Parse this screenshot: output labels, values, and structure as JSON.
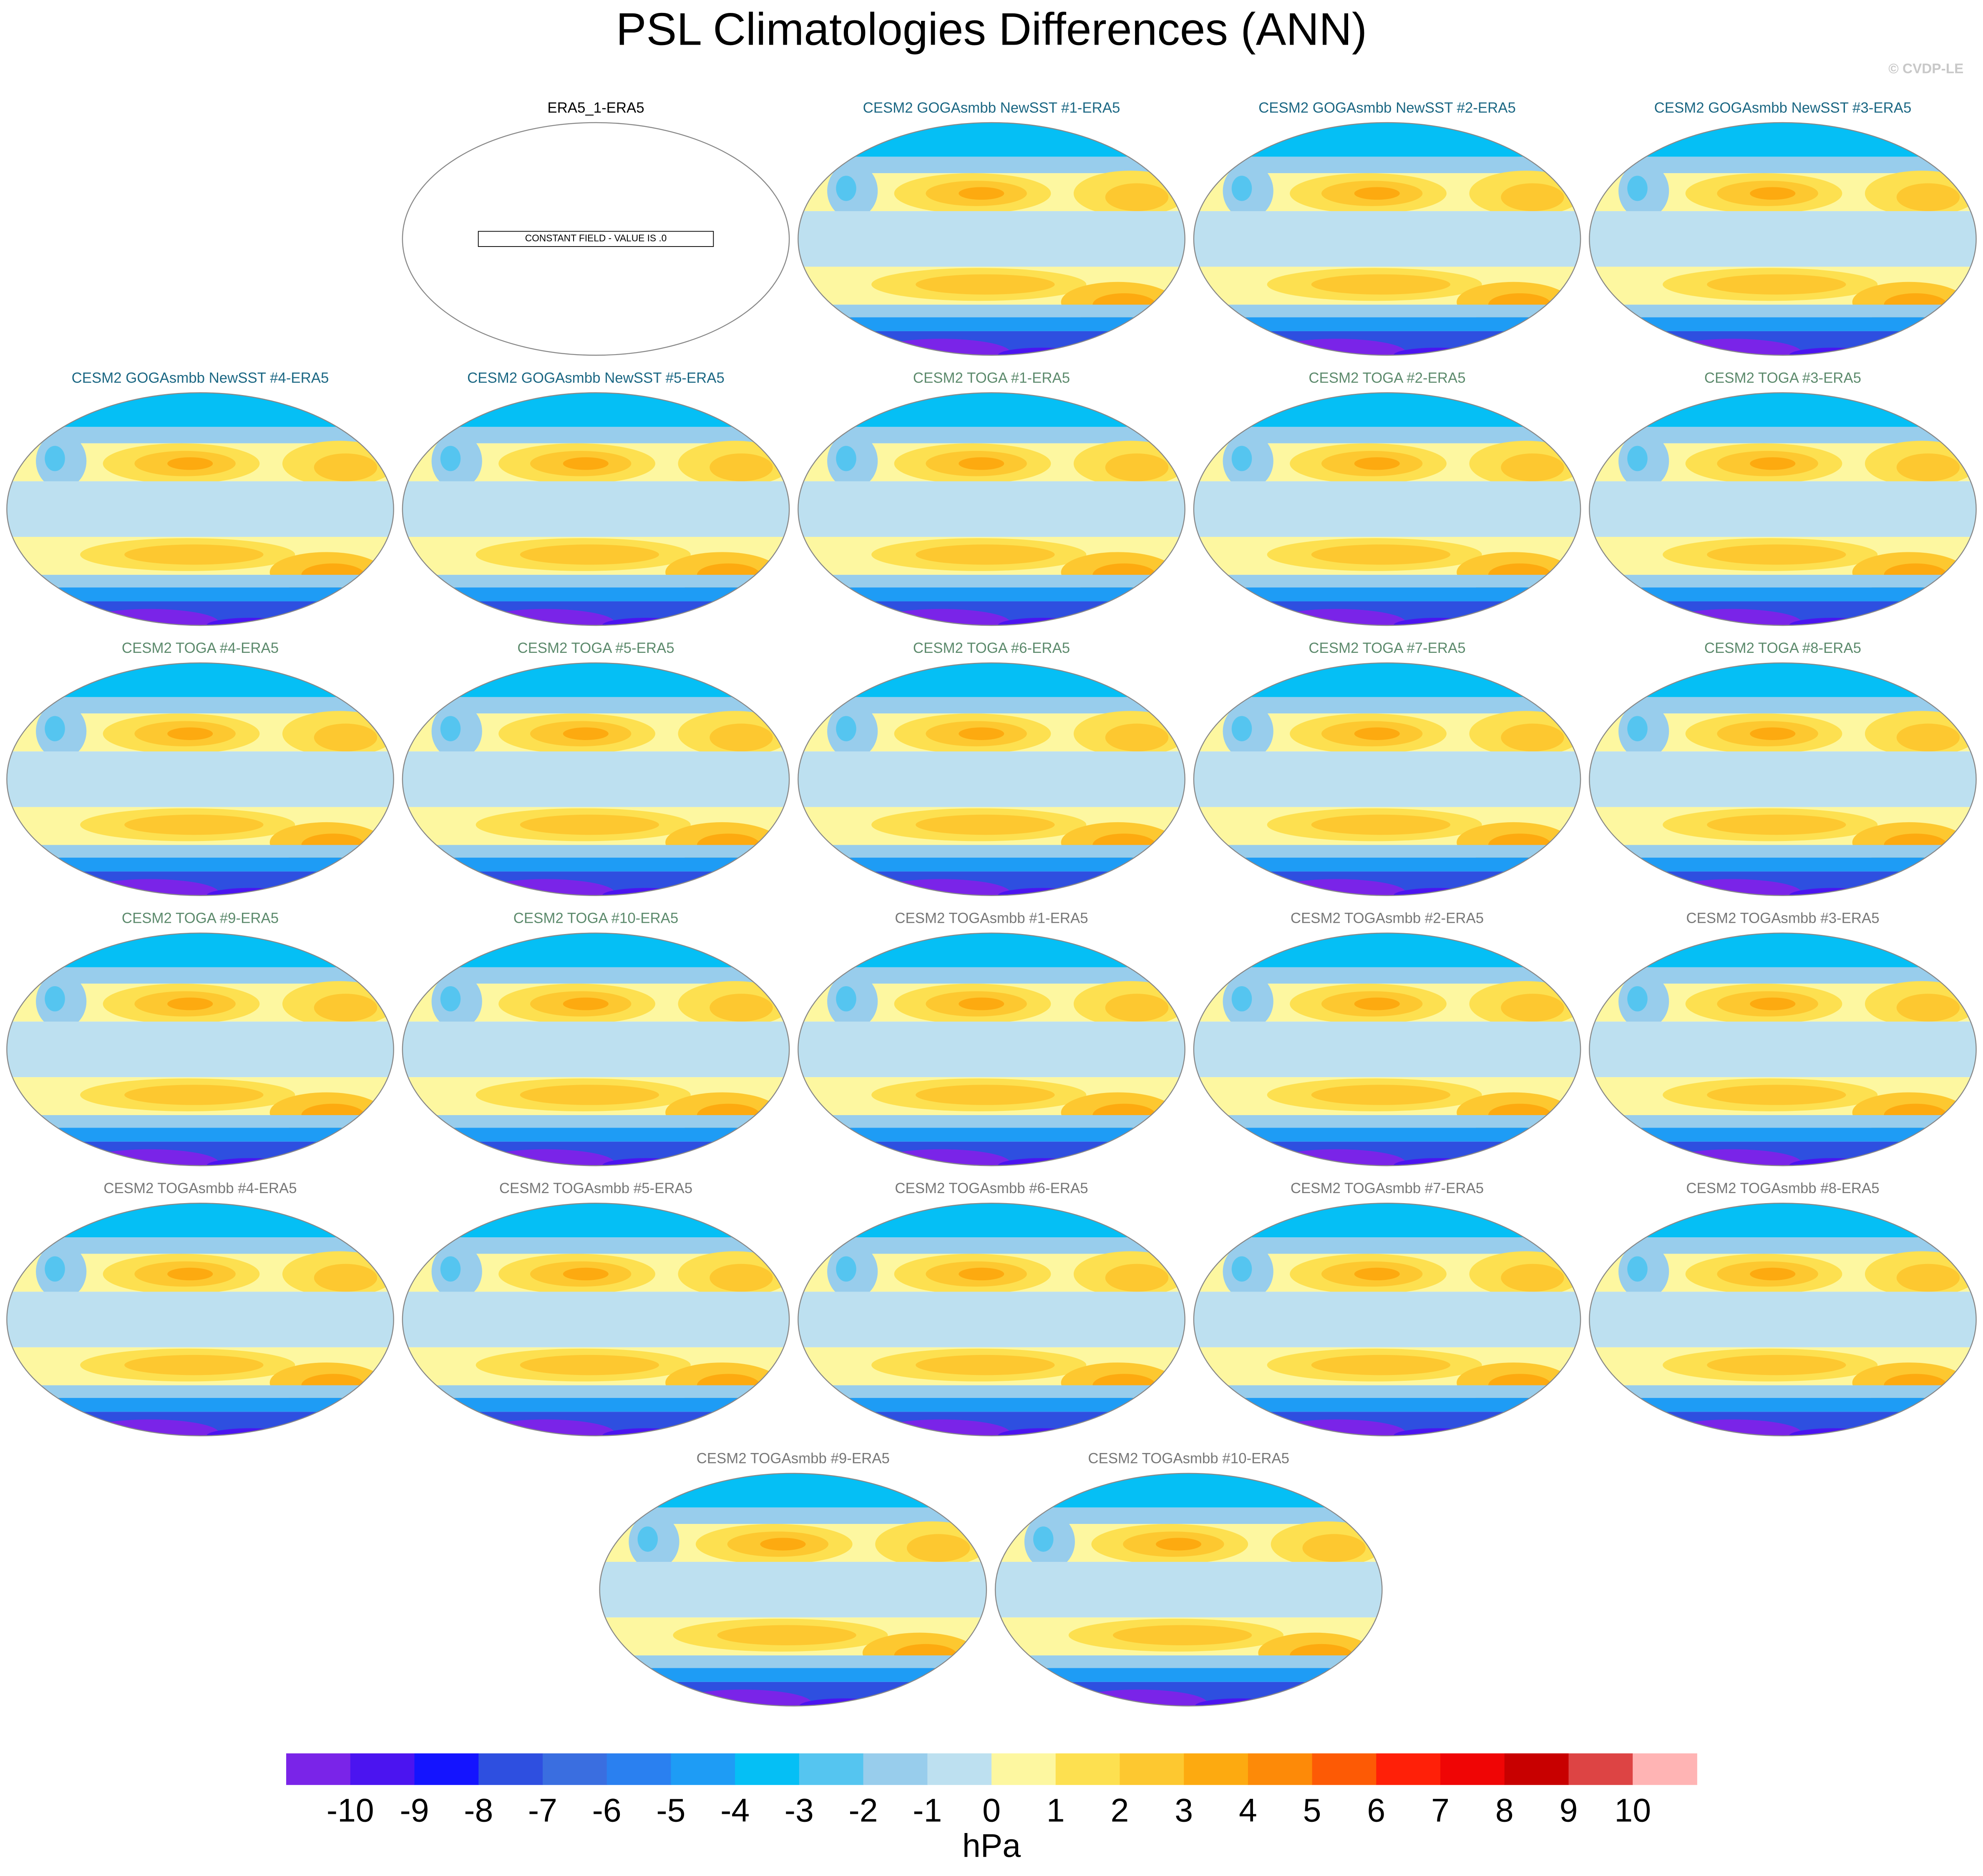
{
  "title": "PSL Climatologies Differences (ANN)",
  "credit": "© CVDP-LE",
  "panels": [
    {
      "title": "ERA5_1-ERA5",
      "color": "#000000",
      "note": "CONSTANT FIELD - VALUE IS .0"
    },
    {
      "title": "CESM2 GOGAsmbb NewSST #1-ERA5",
      "color": "#1b6783"
    },
    {
      "title": "CESM2 GOGAsmbb NewSST #2-ERA5",
      "color": "#1b6783"
    },
    {
      "title": "CESM2 GOGAsmbb NewSST #3-ERA5",
      "color": "#1b6783"
    },
    {
      "title": "CESM2 GOGAsmbb NewSST #4-ERA5",
      "color": "#1b6783"
    },
    {
      "title": "CESM2 GOGAsmbb NewSST #5-ERA5",
      "color": "#1b6783"
    },
    {
      "title": "CESM2 TOGA #1-ERA5",
      "color": "#5c8a6c"
    },
    {
      "title": "CESM2 TOGA #2-ERA5",
      "color": "#5c8a6c"
    },
    {
      "title": "CESM2 TOGA #3-ERA5",
      "color": "#5c8a6c"
    },
    {
      "title": "CESM2 TOGA #4-ERA5",
      "color": "#5c8a6c"
    },
    {
      "title": "CESM2 TOGA #5-ERA5",
      "color": "#5c8a6c"
    },
    {
      "title": "CESM2 TOGA #6-ERA5",
      "color": "#5c8a6c"
    },
    {
      "title": "CESM2 TOGA #7-ERA5",
      "color": "#5c8a6c"
    },
    {
      "title": "CESM2 TOGA #8-ERA5",
      "color": "#5c8a6c"
    },
    {
      "title": "CESM2 TOGA #9-ERA5",
      "color": "#5c8a6c"
    },
    {
      "title": "CESM2 TOGA #10-ERA5",
      "color": "#5c8a6c"
    },
    {
      "title": "CESM2 TOGAsmbb #1-ERA5",
      "color": "#777777"
    },
    {
      "title": "CESM2 TOGAsmbb #2-ERA5",
      "color": "#777777"
    },
    {
      "title": "CESM2 TOGAsmbb #3-ERA5",
      "color": "#777777"
    },
    {
      "title": "CESM2 TOGAsmbb #4-ERA5",
      "color": "#777777"
    },
    {
      "title": "CESM2 TOGAsmbb #5-ERA5",
      "color": "#777777"
    },
    {
      "title": "CESM2 TOGAsmbb #6-ERA5",
      "color": "#777777"
    },
    {
      "title": "CESM2 TOGAsmbb #7-ERA5",
      "color": "#777777"
    },
    {
      "title": "CESM2 TOGAsmbb #8-ERA5",
      "color": "#777777"
    },
    {
      "title": "CESM2 TOGAsmbb #9-ERA5",
      "color": "#777777"
    },
    {
      "title": "CESM2 TOGAsmbb #10-ERA5",
      "color": "#777777"
    }
  ],
  "colorbar": {
    "label": "hPa",
    "ticks": [
      -10,
      -9,
      -8,
      -7,
      -6,
      -5,
      -4,
      -3,
      -2,
      -1,
      0,
      1,
      2,
      3,
      4,
      5,
      6,
      7,
      8,
      9,
      10
    ],
    "colors": [
      "#7a24e8",
      "#4b14f0",
      "#1414ff",
      "#2e4fe0",
      "#3a6ee0",
      "#2a80f0",
      "#1e9cf5",
      "#05bff5",
      "#55c5f0",
      "#98cdec",
      "#bde0f0",
      "#fdf7a0",
      "#fde050",
      "#fdc830",
      "#fdaa10",
      "#fd8a08",
      "#fd5a05",
      "#ff2008",
      "#f00505",
      "#c80000",
      "#dd4444",
      "#ffb4b4"
    ]
  }
}
